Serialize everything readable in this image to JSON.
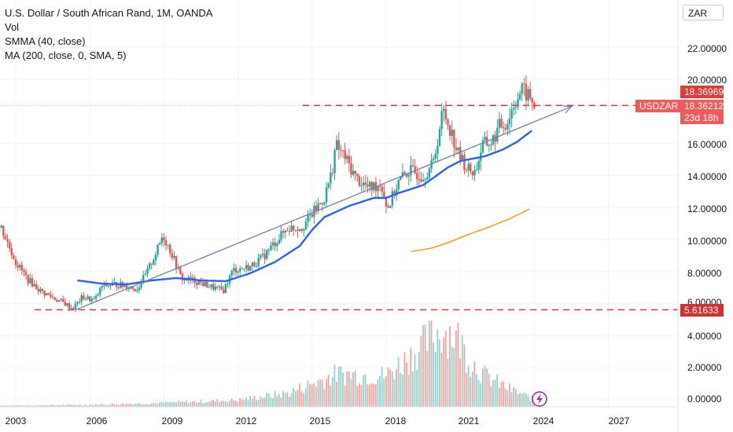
{
  "header": {
    "title": "U.S. Dollar / South African Rand, 1M, OANDA",
    "indicators": [
      "Vol",
      "SMMA (40, close)",
      "MA (200, close, 0, SMA, 5)"
    ]
  },
  "price_scale": {
    "currency": "ZAR",
    "labels": [
      "22.00000",
      "20.00000",
      "16.00000",
      "14.00000",
      "12.00000",
      "10.00000",
      "8.00000",
      "6.00000",
      "4.00000",
      "2.00000",
      "0.00000"
    ],
    "tags": {
      "high_price": "18.36969",
      "symbol": "USDZAR",
      "last_price": "18.36212",
      "countdown": "23d 18h",
      "support_level": "5.61633"
    }
  },
  "time_axis": {
    "labels": [
      "2003",
      "2006",
      "2009",
      "2012",
      "2015",
      "2018",
      "2021",
      "2024",
      "2027"
    ]
  },
  "colors": {
    "up_candle": "#26a69a",
    "down_candle": "#ef5350",
    "smma": "#2962ff",
    "ma": "#ff9800",
    "trendline": "#6e80b5",
    "dashed_level": "#e53935"
  },
  "chart_data": {
    "type": "candlestick",
    "symbol": "USDZAR",
    "interval": "1M",
    "y_range": [
      0,
      23
    ],
    "price_path": [
      [
        2002.0,
        10.5
      ],
      [
        2002.4,
        10.8
      ],
      [
        2003.0,
        8.6
      ],
      [
        2003.5,
        7.5
      ],
      [
        2004.0,
        6.8
      ],
      [
        2004.6,
        6.3
      ],
      [
        2005.0,
        6.0
      ],
      [
        2005.3,
        5.7
      ],
      [
        2005.7,
        6.4
      ],
      [
        2006.2,
        6.2
      ],
      [
        2006.5,
        7.1
      ],
      [
        2007.0,
        7.2
      ],
      [
        2007.5,
        7.1
      ],
      [
        2007.9,
        6.9
      ],
      [
        2008.3,
        7.9
      ],
      [
        2008.8,
        9.6
      ],
      [
        2008.95,
        10.3
      ],
      [
        2009.3,
        9.2
      ],
      [
        2009.7,
        7.6
      ],
      [
        2010.3,
        7.4
      ],
      [
        2011.0,
        7.0
      ],
      [
        2011.4,
        6.8
      ],
      [
        2011.8,
        8.1
      ],
      [
        2012.5,
        8.3
      ],
      [
        2013.0,
        8.9
      ],
      [
        2013.6,
        10.0
      ],
      [
        2014.0,
        10.7
      ],
      [
        2014.6,
        10.8
      ],
      [
        2015.0,
        11.6
      ],
      [
        2015.5,
        12.6
      ],
      [
        2015.8,
        14.2
      ],
      [
        2015.95,
        15.9
      ],
      [
        2016.3,
        15.2
      ],
      [
        2016.8,
        13.8
      ],
      [
        2017.3,
        13.2
      ],
      [
        2017.8,
        13.5
      ],
      [
        2018.05,
        11.9
      ],
      [
        2018.5,
        13.6
      ],
      [
        2018.9,
        14.3
      ],
      [
        2019.5,
        14.0
      ],
      [
        2019.9,
        14.7
      ],
      [
        2020.3,
        18.1
      ],
      [
        2020.6,
        16.9
      ],
      [
        2020.9,
        15.4
      ],
      [
        2021.3,
        14.4
      ],
      [
        2021.6,
        14.2
      ],
      [
        2021.9,
        15.9
      ],
      [
        2022.3,
        16.1
      ],
      [
        2022.6,
        17.1
      ],
      [
        2022.9,
        17.3
      ],
      [
        2023.2,
        18.6
      ],
      [
        2023.5,
        19.3
      ],
      [
        2023.8,
        18.9
      ],
      [
        2023.95,
        18.37
      ]
    ],
    "smma_40": [
      [
        2005.5,
        7.45
      ],
      [
        2006.5,
        7.25
      ],
      [
        2007.5,
        7.2
      ],
      [
        2008.5,
        7.45
      ],
      [
        2009.5,
        7.6
      ],
      [
        2010.5,
        7.45
      ],
      [
        2011.5,
        7.4
      ],
      [
        2012.5,
        7.9
      ],
      [
        2013.5,
        8.6
      ],
      [
        2014.5,
        9.6
      ],
      [
        2015.0,
        10.6
      ],
      [
        2015.5,
        11.4
      ],
      [
        2016.5,
        12.1
      ],
      [
        2017.5,
        12.6
      ],
      [
        2018.0,
        12.6
      ],
      [
        2018.5,
        12.9
      ],
      [
        2019.5,
        13.4
      ],
      [
        2020.5,
        14.5
      ],
      [
        2021.0,
        14.9
      ],
      [
        2022.0,
        15.2
      ],
      [
        2022.7,
        15.6
      ],
      [
        2023.3,
        16.1
      ],
      [
        2023.9,
        16.8
      ]
    ],
    "ma_200": [
      [
        2019.0,
        9.25
      ],
      [
        2019.8,
        9.45
      ],
      [
        2020.5,
        9.8
      ],
      [
        2021.3,
        10.3
      ],
      [
        2022.2,
        10.8
      ],
      [
        2023.0,
        11.3
      ],
      [
        2023.8,
        11.9
      ]
    ],
    "trendline": {
      "from": [
        2005.4,
        5.6
      ],
      "to": [
        2025.5,
        18.3
      ]
    },
    "horizontal_levels": [
      18.37,
      5.61633
    ],
    "volume_peaks": [
      [
        2003.0,
        0.1
      ],
      [
        2006.0,
        0.15
      ],
      [
        2009.0,
        0.3
      ],
      [
        2012.0,
        0.5
      ],
      [
        2014.0,
        1.0
      ],
      [
        2016.0,
        2.4
      ],
      [
        2018.0,
        2.3
      ],
      [
        2019.3,
        4.2
      ],
      [
        2020.2,
        5.6
      ],
      [
        2020.7,
        5.4
      ],
      [
        2021.0,
        4.8
      ],
      [
        2021.3,
        3.6
      ],
      [
        2022.0,
        2.3
      ],
      [
        2023.0,
        1.3
      ],
      [
        2023.9,
        0.6
      ]
    ]
  }
}
